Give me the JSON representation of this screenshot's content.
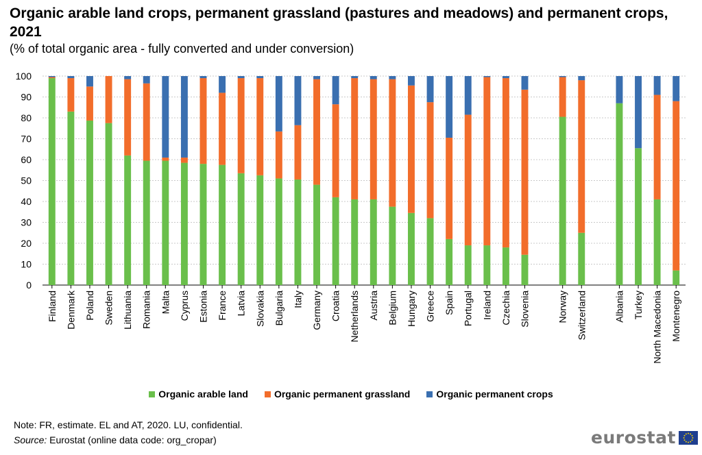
{
  "title": "Organic arable land crops, permanent grassland (pastures and meadows) and permanent crops, 2021",
  "subtitle": "(% of total organic area - fully converted and under conversion)",
  "note": "Note: FR, estimate. EL and AT, 2020. LU, confidential.",
  "source_label": "Source:",
  "source_text": " Eurostat (online data code: org_cropar)",
  "logo_text": "eurostat",
  "colors": {
    "arable": "#6abf4b",
    "grassland": "#f26d2b",
    "crops": "#3a6fb0"
  },
  "chart_data": {
    "type": "bar",
    "stacked": true,
    "title": "Organic arable land crops, permanent grassland (pastures and meadows) and permanent crops, 2021",
    "subtitle": "(% of total organic area - fully converted and under conversion)",
    "xlabel": "",
    "ylabel": "",
    "ylim": [
      0,
      100
    ],
    "yticks": [
      0,
      10,
      20,
      30,
      40,
      50,
      60,
      70,
      80,
      90,
      100
    ],
    "grid": true,
    "legend_position": "bottom",
    "groups": [
      [
        "Finland",
        "Denmark",
        "Poland",
        "Sweden",
        "Lithuania",
        "Romania",
        "Malta",
        "Cyprus",
        "Estonia",
        "France",
        "Latvia",
        "Slovakia",
        "Bulgaria",
        "Italy",
        "Germany",
        "Croatia",
        "Netherlands",
        "Austria",
        "Belgium",
        "Hungary",
        "Greece",
        "Spain",
        "Portugal",
        "Ireland",
        "Czechia",
        "Slovenia"
      ],
      [
        "Norway",
        "Switzerland"
      ],
      [
        "Albania",
        "Turkey",
        "North Macedonia",
        "Montenegro"
      ]
    ],
    "categories": [
      "Finland",
      "Denmark",
      "Poland",
      "Sweden",
      "Lithuania",
      "Romania",
      "Malta",
      "Cyprus",
      "Estonia",
      "France",
      "Latvia",
      "Slovakia",
      "Bulgaria",
      "Italy",
      "Germany",
      "Croatia",
      "Netherlands",
      "Austria",
      "Belgium",
      "Hungary",
      "Greece",
      "Spain",
      "Portugal",
      "Ireland",
      "Czechia",
      "Slovenia",
      "Norway",
      "Switzerland",
      "Albania",
      "Turkey",
      "North Macedonia",
      "Montenegro"
    ],
    "series": [
      {
        "name": "Organic arable land",
        "color": "#6abf4b",
        "values": [
          99.0,
          83.0,
          78.7,
          77.5,
          62.0,
          59.5,
          59.5,
          58.5,
          58.0,
          57.5,
          53.5,
          52.5,
          51.0,
          50.5,
          48.0,
          42.0,
          41.0,
          41.0,
          37.5,
          34.5,
          32.0,
          22.0,
          19.0,
          19.0,
          18.0,
          14.5,
          80.5,
          25.0,
          87.0,
          65.5,
          41.0,
          7.0
        ]
      },
      {
        "name": "Organic permanent grassland",
        "color": "#f26d2b",
        "values": [
          0.5,
          16.0,
          16.3,
          22.5,
          36.5,
          37.0,
          1.5,
          2.5,
          41.0,
          34.5,
          45.5,
          46.5,
          22.5,
          26.0,
          50.5,
          44.5,
          58.0,
          57.5,
          61.0,
          61.0,
          55.5,
          48.5,
          62.5,
          80.5,
          81.0,
          79.0,
          19.0,
          73.0,
          0.0,
          0.0,
          50.0,
          81.0
        ]
      },
      {
        "name": "Organic permanent crops",
        "color": "#3a6fb0",
        "values": [
          0.5,
          1.0,
          5.0,
          0.0,
          1.5,
          3.5,
          39.0,
          39.0,
          1.0,
          8.0,
          1.0,
          1.0,
          26.5,
          23.5,
          1.5,
          13.5,
          1.0,
          1.5,
          1.5,
          4.5,
          12.5,
          29.5,
          18.5,
          0.5,
          1.0,
          6.5,
          0.5,
          2.0,
          13.0,
          34.5,
          9.0,
          12.0
        ]
      }
    ]
  }
}
